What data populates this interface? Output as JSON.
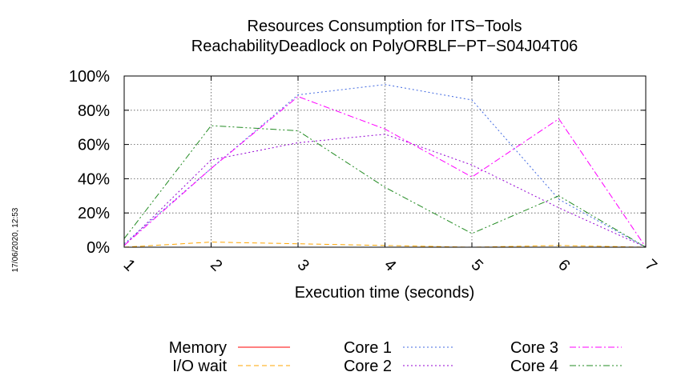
{
  "chart_data": {
    "type": "line",
    "title": [
      "Resources Consumption for ITS−Tools",
      "ReachabilityDeadlock on PolyORBLF−PT−S04J04T06"
    ],
    "xlabel": "Execution time (seconds)",
    "ylabel": "",
    "x": [
      1,
      2,
      3,
      4,
      5,
      6,
      7
    ],
    "xlim": [
      1,
      7
    ],
    "ylim": [
      0,
      100
    ],
    "xticks": [
      "1",
      "2",
      "3",
      "4",
      "5",
      "6",
      "7"
    ],
    "yticks": [
      "0%",
      "20%",
      "40%",
      "60%",
      "80%",
      "100%"
    ],
    "grid": true,
    "legend_position": "bottom",
    "timestamp": "17/06/2020, 12:53",
    "series": [
      {
        "name": "Memory",
        "color": "#ff0000",
        "dash": "solid",
        "values": [
          0,
          0,
          0,
          0,
          0,
          0,
          0
        ]
      },
      {
        "name": "I/O wait",
        "color": "#ffa500",
        "dash": "dashed",
        "values": [
          0,
          3,
          2,
          1,
          0,
          1,
          0
        ]
      },
      {
        "name": "Core 1",
        "color": "#4169e1",
        "dash": "dotted",
        "values": [
          2,
          46,
          89,
          95,
          86,
          28,
          0
        ]
      },
      {
        "name": "Core 2",
        "color": "#9400d3",
        "dash": "dotted",
        "values": [
          1,
          51,
          61,
          66,
          48,
          23,
          0
        ]
      },
      {
        "name": "Core 3",
        "color": "#ff00ff",
        "dash": "dashdot",
        "values": [
          1,
          46,
          88,
          69,
          41,
          75,
          0
        ]
      },
      {
        "name": "Core 4",
        "color": "#228b22",
        "dash": "dashdotdot",
        "values": [
          5,
          71,
          68,
          35,
          8,
          30,
          0
        ]
      }
    ]
  }
}
